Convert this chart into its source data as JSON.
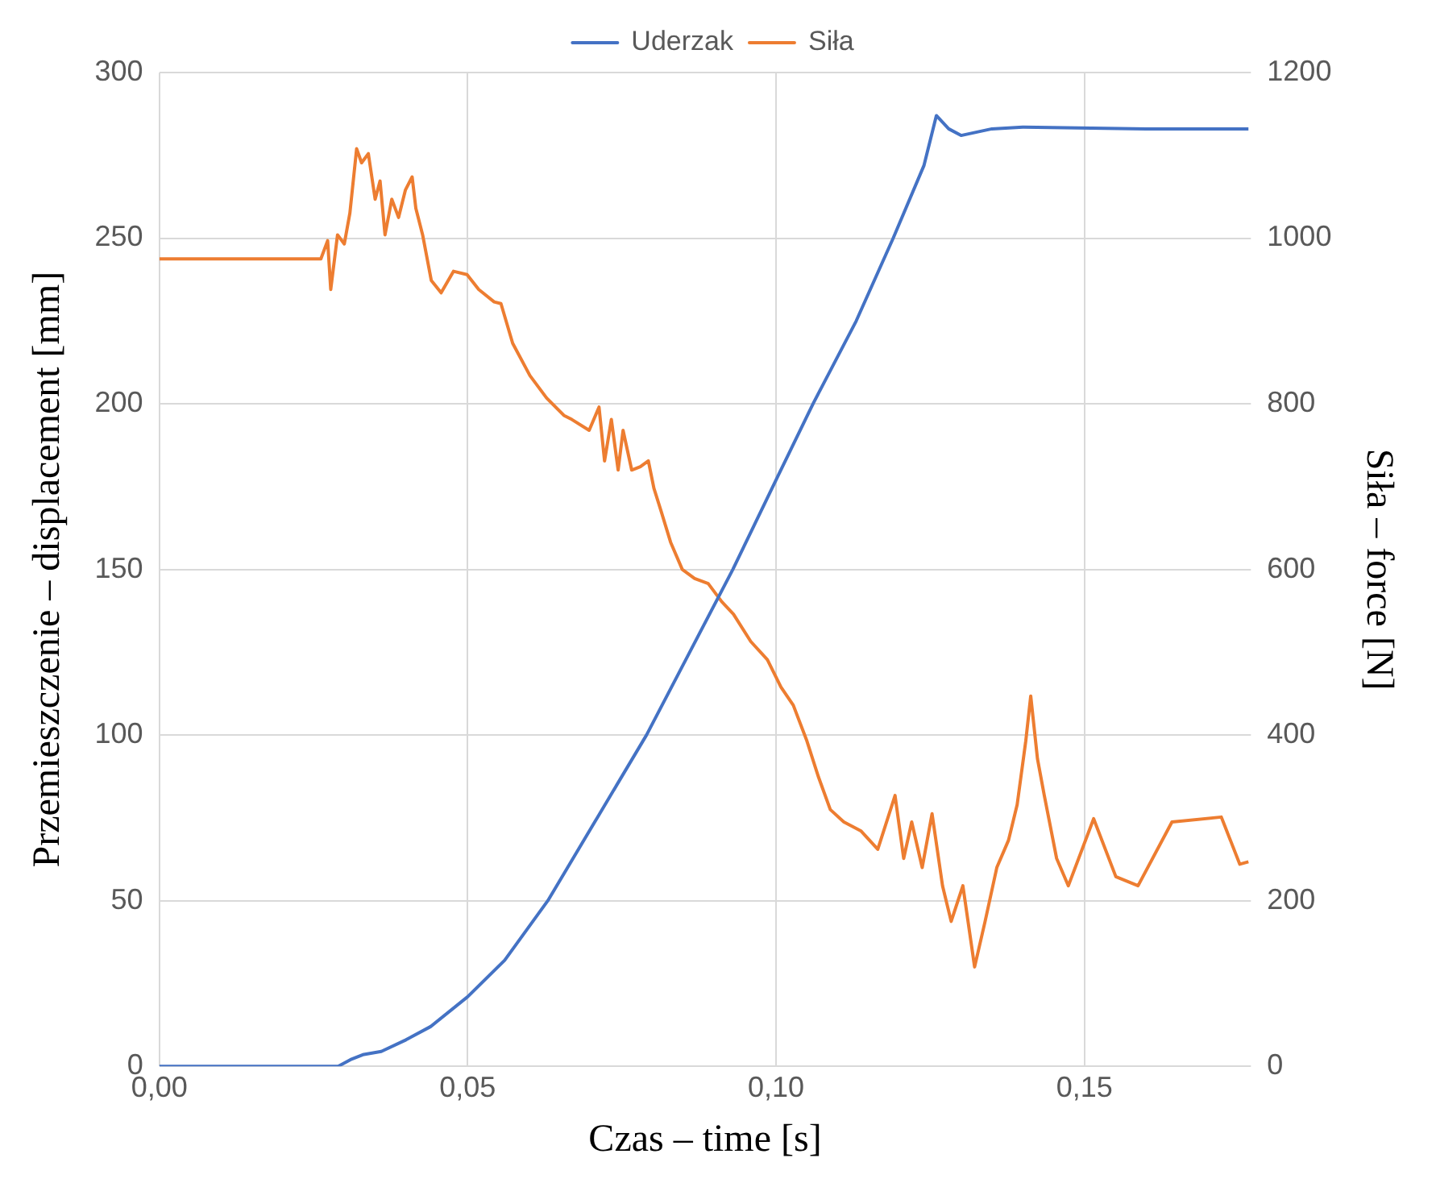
{
  "chart_data": {
    "type": "line",
    "xlabel": "Czas – time [s]",
    "ylabel": "Przemieszczenie – displacement [mm]",
    "y2label": "Siła – force [N]",
    "xlim": [
      0,
      0.177
    ],
    "xticks": [
      {
        "value": 0,
        "label": "0,00"
      },
      {
        "value": 0.05,
        "label": "0,05"
      },
      {
        "value": 0.1,
        "label": "0,10"
      },
      {
        "value": 0.15,
        "label": "0,15"
      }
    ],
    "ylim": [
      0,
      300
    ],
    "yticks": [
      0,
      50,
      100,
      150,
      200,
      250,
      300
    ],
    "y2lim": [
      0,
      1200
    ],
    "y2ticks": [
      0,
      200,
      400,
      600,
      800,
      1000,
      1200
    ],
    "grid": true,
    "legend": "top",
    "marker": "none",
    "line_style": "solid",
    "series": [
      {
        "name": "Uderzak",
        "color": "#4472c4",
        "x": [
          0,
          0.029,
          0.031,
          0.033,
          0.036,
          0.04,
          0.044,
          0.05,
          0.056,
          0.063,
          0.071,
          0.079,
          0.086,
          0.093,
          0.1,
          0.106,
          0.113,
          0.119,
          0.124,
          0.126,
          0.128,
          0.13,
          0.135,
          0.14,
          0.16,
          0.1766
        ],
        "values": [
          0,
          0,
          2,
          3.5,
          4.5,
          8,
          12,
          21,
          32,
          50,
          75,
          100,
          125,
          150,
          177,
          200,
          225,
          250,
          272,
          287,
          283,
          281,
          283,
          283.5,
          283,
          283
        ]
      },
      {
        "name": "Siła",
        "color": "#ed7d31",
        "axis": "y2",
        "x": [
          0,
          0.0262,
          0.0273,
          0.0278,
          0.0289,
          0.03,
          0.0309,
          0.032,
          0.0328,
          0.0339,
          0.035,
          0.0358,
          0.0366,
          0.0377,
          0.0388,
          0.0399,
          0.041,
          0.0416,
          0.0427,
          0.0441,
          0.0457,
          0.0477,
          0.0499,
          0.0518,
          0.0543,
          0.0554,
          0.0573,
          0.0601,
          0.0628,
          0.0656,
          0.0669,
          0.0697,
          0.0713,
          0.0722,
          0.0733,
          0.0744,
          0.0752,
          0.0766,
          0.078,
          0.0793,
          0.0802,
          0.0813,
          0.0829,
          0.0848,
          0.0868,
          0.089,
          0.0912,
          0.0931,
          0.0959,
          0.0986,
          0.1008,
          0.1028,
          0.105,
          0.1069,
          0.1088,
          0.111,
          0.1138,
          0.1165,
          0.1193,
          0.1207,
          0.122,
          0.1237,
          0.1253,
          0.127,
          0.1284,
          0.1303,
          0.1322,
          0.1339,
          0.1358,
          0.1377,
          0.1391,
          0.1405,
          0.1413,
          0.1424,
          0.1435,
          0.1455,
          0.1474,
          0.1515,
          0.1551,
          0.1587,
          0.1642,
          0.1722,
          0.1752,
          0.1766
        ],
        "values": [
          975,
          975,
          997,
          938,
          1004,
          993,
          1030,
          1108,
          1091,
          1102,
          1047,
          1069,
          1004,
          1047,
          1025,
          1058,
          1074,
          1036,
          1004,
          949,
          934,
          960,
          956,
          938,
          923,
          921,
          873,
          834,
          807,
          786,
          781,
          768,
          796,
          731,
          781,
          720,
          768,
          720,
          724,
          731,
          698,
          672,
          633,
          600,
          589,
          583,
          561,
          546,
          513,
          491,
          458,
          436,
          393,
          349,
          310,
          295,
          284,
          262,
          327,
          251,
          295,
          240,
          305,
          218,
          175,
          218,
          120,
          175,
          240,
          273,
          316,
          393,
          447,
          371,
          327,
          251,
          218,
          299,
          229,
          218,
          295,
          301,
          244,
          247
        ]
      }
    ]
  }
}
